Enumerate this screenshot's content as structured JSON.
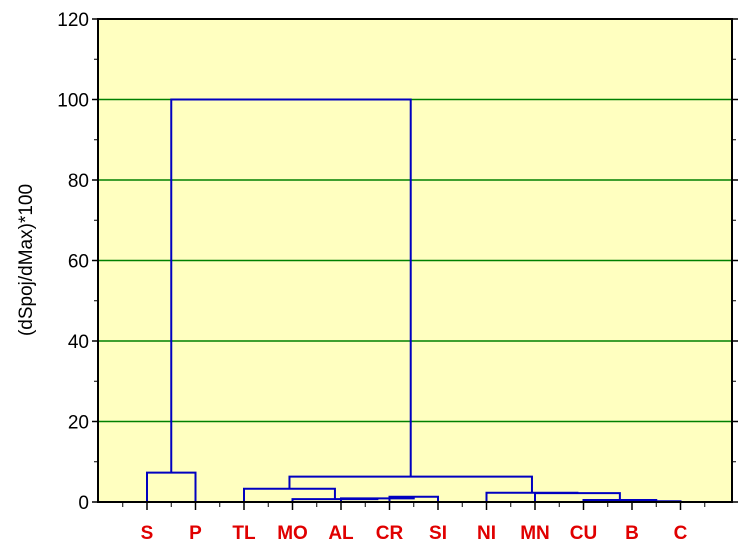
{
  "chart_data": {
    "type": "dendrogram",
    "title": "",
    "xlabel": "",
    "ylabel": "(dSpoj/dMax)*100",
    "ylim": [
      0,
      120
    ],
    "yticks": [
      0,
      20,
      40,
      60,
      80,
      100,
      120
    ],
    "grid": true,
    "leaves": [
      "S",
      "P",
      "TL",
      "MO",
      "AL",
      "CR",
      "SI",
      "NI",
      "MN",
      "CU",
      "B",
      "C"
    ],
    "merges": [
      {
        "left": 10,
        "right": 11,
        "height": 0.2
      },
      {
        "left": 9,
        "right": "m0",
        "height": 0.5
      },
      {
        "left": 8,
        "right": "m1",
        "height": 2.2
      },
      {
        "left": 7,
        "right": "m2",
        "height": 2.3
      },
      {
        "left": 5,
        "right": 6,
        "height": 1.3
      },
      {
        "left": 4,
        "right": "m4",
        "height": 0.9
      },
      {
        "left": 3,
        "right": "m5",
        "height": 0.7
      },
      {
        "left": 2,
        "right": "m6",
        "height": 3.3
      },
      {
        "left": "m7",
        "right": "m3",
        "height": 6.3
      },
      {
        "left": 0,
        "right": 1,
        "height": 7.3
      },
      {
        "left": "m9",
        "right": "m8",
        "height": 100
      }
    ],
    "colors": {
      "background": "#ffffc0",
      "grid": "#008000",
      "tree": "#0000c0",
      "leaf_labels": "#e00000"
    }
  }
}
